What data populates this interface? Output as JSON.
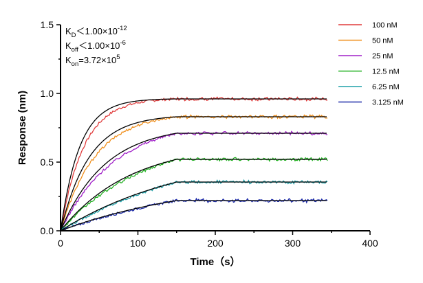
{
  "chart_data": {
    "type": "line",
    "xlabel": "Time（s）",
    "ylabel": "Response (nm)",
    "xlim": [
      0,
      400
    ],
    "ylim": [
      0,
      1.5
    ],
    "x_ticks": [
      0,
      100,
      200,
      300,
      400
    ],
    "y_ticks": [
      0.0,
      0.5,
      1.0,
      1.5
    ],
    "x_tick_labels": [
      "0",
      "100",
      "200",
      "300",
      "400"
    ],
    "y_tick_labels": [
      "0.0",
      "0.5",
      "1.0",
      "1.5"
    ],
    "grid": false,
    "legend_position": "top-right",
    "association_end": 150,
    "time_end": 345,
    "annotations": [
      {
        "label": "K",
        "sub": "D",
        "mid": "＜1.00×10",
        "sup": "-12"
      },
      {
        "label": "K",
        "sub": "off",
        "mid": "＜1.00×10",
        "sup": "-6"
      },
      {
        "label": "K",
        "sub": "on",
        "mid": "=3.72×10",
        "sup": "5"
      }
    ],
    "series": [
      {
        "name": "100 nM",
        "color": "#e03c3c",
        "plateau": 0.96,
        "tau": 30
      },
      {
        "name": "50 nM",
        "color": "#f0901e",
        "plateau": 0.83,
        "tau": 45
      },
      {
        "name": "25 nM",
        "color": "#a020c8",
        "plateau": 0.71,
        "tau": 70
      },
      {
        "name": "12.5 nM",
        "color": "#20b020",
        "plateau": 0.52,
        "tau": 110
      },
      {
        "name": "6.25 nM",
        "color": "#1ea0a8",
        "plateau": 0.355,
        "tau": 200
      },
      {
        "name": "3.125 nM",
        "color": "#1c2aa8",
        "plateau": 0.22,
        "tau": 220
      }
    ],
    "fit_color": "#000000"
  }
}
